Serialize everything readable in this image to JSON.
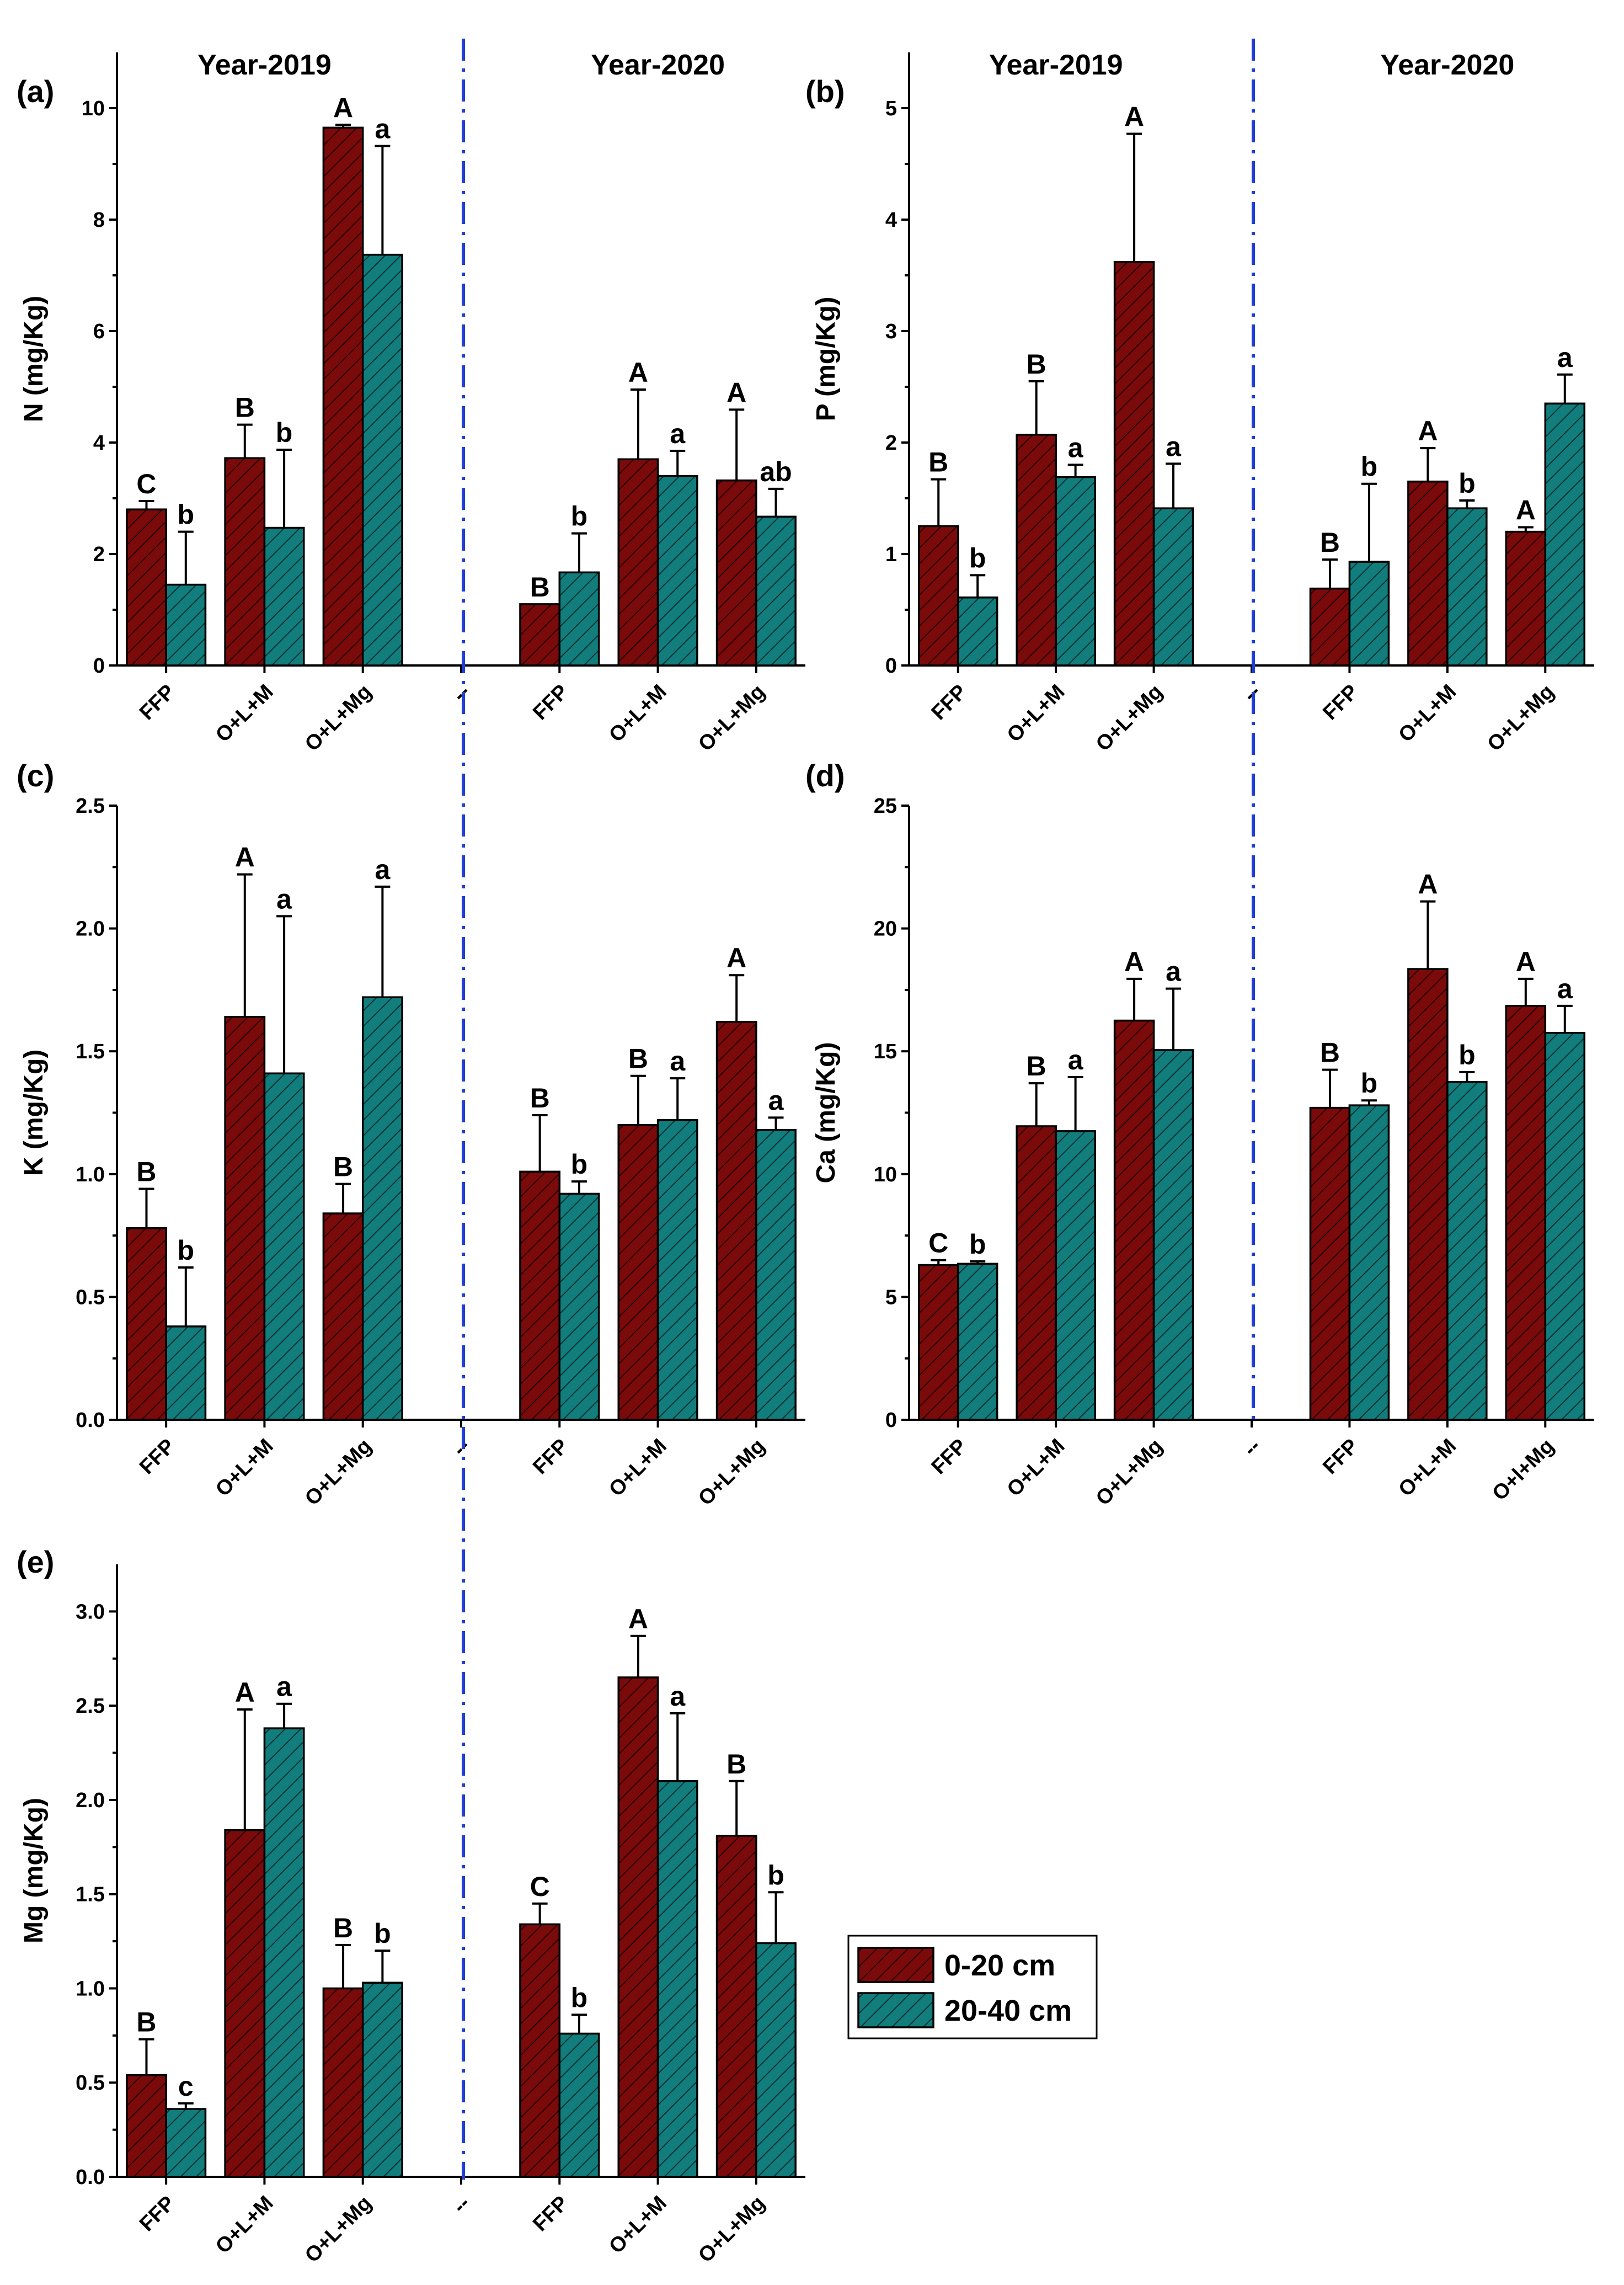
{
  "year_labels": [
    "Year-2019",
    "Year-2020"
  ],
  "legend": {
    "series": [
      {
        "name": "0-20 cm",
        "color": "#7b0a0a"
      },
      {
        "name": "20-40 cm",
        "color": "#127d7d"
      }
    ]
  },
  "chart_data": [
    {
      "id": "a",
      "panel": "(a)",
      "type": "bar",
      "ylabel": "N (mg/Kg)",
      "ylim": [
        0,
        11
      ],
      "yticks": [
        0,
        2,
        4,
        6,
        8,
        10
      ],
      "ytick_labels": [
        "0",
        "2",
        "4",
        "6",
        "8",
        "10"
      ],
      "categories": [
        "FFP",
        "O+L+M",
        "O+L+Mg",
        "--",
        "FFP",
        "O+L+M",
        "O+L+Mg"
      ],
      "groups": [
        {
          "category": "FFP",
          "year": "Year-2019",
          "red": 2.8,
          "red_err": 0.15,
          "red_sig": "C",
          "teal": 1.45,
          "teal_err": 0.95,
          "teal_sig": "b"
        },
        {
          "category": "O+L+M",
          "year": "Year-2019",
          "red": 3.72,
          "red_err": 0.6,
          "red_sig": "B",
          "teal": 2.47,
          "teal_err": 1.4,
          "teal_sig": "b"
        },
        {
          "category": "O+L+Mg",
          "year": "Year-2019",
          "red": 9.65,
          "red_err": 0.05,
          "red_sig": "A",
          "teal": 7.37,
          "teal_err": 1.95,
          "teal_sig": "a"
        },
        {
          "category": "FFP",
          "year": "Year-2020",
          "red": 1.1,
          "red_err": 0.0,
          "red_sig": "B",
          "teal": 1.67,
          "teal_err": 0.7,
          "teal_sig": "b"
        },
        {
          "category": "O+L+M",
          "year": "Year-2020",
          "red": 3.7,
          "red_err": 1.25,
          "red_sig": "A",
          "teal": 3.4,
          "teal_err": 0.45,
          "teal_sig": "a"
        },
        {
          "category": "O+L+Mg",
          "year": "Year-2020",
          "red": 3.32,
          "red_err": 1.27,
          "red_sig": "A",
          "teal": 2.67,
          "teal_err": 0.5,
          "teal_sig": "ab"
        }
      ]
    },
    {
      "id": "b",
      "panel": "(b)",
      "type": "bar",
      "ylabel": "P (mg/Kg)",
      "ylim": [
        0,
        5.5
      ],
      "yticks": [
        0,
        1,
        2,
        3,
        4,
        5
      ],
      "ytick_labels": [
        "0",
        "1",
        "2",
        "3",
        "4",
        "5"
      ],
      "categories": [
        "FFP",
        "O+L+M",
        "O+L+Mg",
        "--",
        "FFP",
        "O+L+M",
        "O+L+Mg"
      ],
      "groups": [
        {
          "category": "FFP",
          "year": "Year-2019",
          "red": 1.25,
          "red_err": 0.42,
          "red_sig": "B",
          "teal": 0.61,
          "teal_err": 0.2,
          "teal_sig": "b"
        },
        {
          "category": "O+L+M",
          "year": "Year-2019",
          "red": 2.07,
          "red_err": 0.48,
          "red_sig": "B",
          "teal": 1.69,
          "teal_err": 0.11,
          "teal_sig": "a"
        },
        {
          "category": "O+L+Mg",
          "year": "Year-2019",
          "red": 3.62,
          "red_err": 1.15,
          "red_sig": "A",
          "teal": 1.41,
          "teal_err": 0.4,
          "teal_sig": "a"
        },
        {
          "category": "FFP",
          "year": "Year-2020",
          "red": 0.69,
          "red_err": 0.26,
          "red_sig": "B",
          "teal": 0.93,
          "teal_err": 0.7,
          "teal_sig": "b"
        },
        {
          "category": "O+L+M",
          "year": "Year-2020",
          "red": 1.65,
          "red_err": 0.3,
          "red_sig": "A",
          "teal": 1.41,
          "teal_err": 0.07,
          "teal_sig": "b"
        },
        {
          "category": "O+L+Mg",
          "year": "Year-2020",
          "red": 1.2,
          "red_err": 0.04,
          "red_sig": "A",
          "teal": 2.35,
          "teal_err": 0.26,
          "teal_sig": "a"
        }
      ]
    },
    {
      "id": "c",
      "panel": "(c)",
      "type": "bar",
      "ylabel": "K (mg/Kg)",
      "ylim": [
        0,
        2.5
      ],
      "yticks": [
        0,
        0.5,
        1.0,
        1.5,
        2.0,
        2.5
      ],
      "ytick_labels": [
        "0.0",
        "0.5",
        "1.0",
        "1.5",
        "2.0",
        "2.5"
      ],
      "categories": [
        "FFP",
        "O+L+M",
        "O+L+Mg",
        "--",
        "FFP",
        "O+L+M",
        "O+L+Mg"
      ],
      "groups": [
        {
          "category": "FFP",
          "year": "Year-2019",
          "red": 0.78,
          "red_err": 0.16,
          "red_sig": "B",
          "teal": 0.38,
          "teal_err": 0.24,
          "teal_sig": "b"
        },
        {
          "category": "O+L+M",
          "year": "Year-2019",
          "red": 1.64,
          "red_err": 0.58,
          "red_sig": "A",
          "teal": 1.41,
          "teal_err": 0.64,
          "teal_sig": "a"
        },
        {
          "category": "O+L+Mg",
          "year": "Year-2019",
          "red": 0.84,
          "red_err": 0.12,
          "red_sig": "B",
          "teal": 1.72,
          "teal_err": 0.45,
          "teal_sig": "a"
        },
        {
          "category": "FFP",
          "year": "Year-2020",
          "red": 1.01,
          "red_err": 0.23,
          "red_sig": "B",
          "teal": 0.92,
          "teal_err": 0.05,
          "teal_sig": "b"
        },
        {
          "category": "O+L+M",
          "year": "Year-2020",
          "red": 1.2,
          "red_err": 0.2,
          "red_sig": "B",
          "teal": 1.22,
          "teal_err": 0.17,
          "teal_sig": "a"
        },
        {
          "category": "O+L+Mg",
          "year": "Year-2020",
          "red": 1.62,
          "red_err": 0.19,
          "red_sig": "A",
          "teal": 1.18,
          "teal_err": 0.05,
          "teal_sig": "a"
        }
      ]
    },
    {
      "id": "d",
      "panel": "(d)",
      "type": "bar",
      "ylabel": "Ca (mg/Kg)",
      "ylim": [
        0,
        25
      ],
      "yticks": [
        0,
        5,
        10,
        15,
        20,
        25
      ],
      "ytick_labels": [
        "0",
        "5",
        "10",
        "15",
        "20",
        "25"
      ],
      "categories": [
        "FFP",
        "O+L+M",
        "O+L+Mg",
        "--",
        "FFP",
        "O+L+M",
        "O+l+Mg"
      ],
      "groups": [
        {
          "category": "FFP",
          "year": "Year-2019",
          "red": 6.3,
          "red_err": 0.2,
          "red_sig": "C",
          "teal": 6.35,
          "teal_err": 0.1,
          "teal_sig": "b"
        },
        {
          "category": "O+L+M",
          "year": "Year-2019",
          "red": 11.95,
          "red_err": 1.75,
          "red_sig": "B",
          "teal": 11.75,
          "teal_err": 2.2,
          "teal_sig": "a"
        },
        {
          "category": "O+L+Mg",
          "year": "Year-2019",
          "red": 16.25,
          "red_err": 1.7,
          "red_sig": "A",
          "teal": 15.05,
          "teal_err": 2.5,
          "teal_sig": "a"
        },
        {
          "category": "FFP",
          "year": "Year-2020",
          "red": 12.7,
          "red_err": 1.55,
          "red_sig": "B",
          "teal": 12.8,
          "teal_err": 0.2,
          "teal_sig": "b"
        },
        {
          "category": "O+L+M",
          "year": "Year-2020",
          "red": 18.35,
          "red_err": 2.75,
          "red_sig": "A",
          "teal": 13.75,
          "teal_err": 0.4,
          "teal_sig": "b"
        },
        {
          "category": "O+l+Mg",
          "year": "Year-2020",
          "red": 16.85,
          "red_err": 1.1,
          "red_sig": "A",
          "teal": 15.75,
          "teal_err": 1.1,
          "teal_sig": "a"
        }
      ]
    },
    {
      "id": "e",
      "panel": "(e)",
      "type": "bar",
      "ylabel": "Mg (mg/Kg)",
      "ylim": [
        0,
        3.25
      ],
      "yticks": [
        0,
        0.5,
        1.0,
        1.5,
        2.0,
        2.5,
        3.0
      ],
      "ytick_labels": [
        "0.0",
        "0.5",
        "1.0",
        "1.5",
        "2.0",
        "2.5",
        "3.0"
      ],
      "categories": [
        "FFP",
        "O+L+M",
        "O+L+Mg",
        "--",
        "FFP",
        "O+L+M",
        "O+L+Mg"
      ],
      "groups": [
        {
          "category": "FFP",
          "year": "Year-2019",
          "red": 0.54,
          "red_err": 0.19,
          "red_sig": "B",
          "teal": 0.36,
          "teal_err": 0.03,
          "teal_sig": "c"
        },
        {
          "category": "O+L+M",
          "year": "Year-2019",
          "red": 1.84,
          "red_err": 0.64,
          "red_sig": "A",
          "teal": 2.38,
          "teal_err": 0.13,
          "teal_sig": "a"
        },
        {
          "category": "O+L+Mg",
          "year": "Year-2019",
          "red": 1.0,
          "red_err": 0.23,
          "red_sig": "B",
          "teal": 1.03,
          "teal_err": 0.17,
          "teal_sig": "b"
        },
        {
          "category": "FFP",
          "year": "Year-2020",
          "red": 1.34,
          "red_err": 0.11,
          "red_sig": "C",
          "teal": 0.76,
          "teal_err": 0.1,
          "teal_sig": "b"
        },
        {
          "category": "O+L+M",
          "year": "Year-2020",
          "red": 2.65,
          "red_err": 0.22,
          "red_sig": "A",
          "teal": 2.1,
          "teal_err": 0.36,
          "teal_sig": "a"
        },
        {
          "category": "O+L+Mg",
          "year": "Year-2020",
          "red": 1.81,
          "red_err": 0.29,
          "red_sig": "B",
          "teal": 1.24,
          "teal_err": 0.27,
          "teal_sig": "b"
        }
      ]
    }
  ]
}
